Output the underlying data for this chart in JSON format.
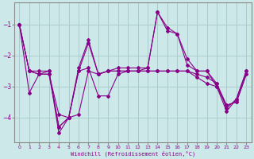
{
  "xlabel": "Windchill (Refroidissement éolien,°C)",
  "bg_color": "#cce8e8",
  "grid_color": "#aacccc",
  "line_color": "#880088",
  "x": [
    0,
    1,
    2,
    3,
    4,
    5,
    6,
    7,
    8,
    9,
    10,
    11,
    12,
    13,
    14,
    15,
    16,
    17,
    18,
    19,
    20,
    21,
    22,
    23
  ],
  "series": [
    [
      -1.0,
      -2.5,
      -2.6,
      -2.6,
      -4.3,
      -4.0,
      -3.9,
      -2.5,
      -2.6,
      -2.5,
      -2.5,
      -2.5,
      -2.5,
      -2.5,
      -2.5,
      -2.5,
      -2.5,
      -2.5,
      -2.6,
      -2.7,
      -2.9,
      -3.6,
      -3.5,
      -2.6
    ],
    [
      -1.0,
      -2.5,
      -2.5,
      -2.5,
      -4.5,
      -4.0,
      -2.5,
      -1.6,
      -2.6,
      -2.5,
      -2.4,
      -2.4,
      -2.4,
      -2.4,
      -0.6,
      -1.2,
      -1.3,
      -2.1,
      -2.5,
      -2.5,
      -2.9,
      -3.7,
      -3.4,
      -2.5
    ],
    [
      -1.0,
      -2.5,
      -2.6,
      -2.6,
      -3.9,
      -4.0,
      -2.4,
      -1.5,
      -2.6,
      -2.5,
      -2.5,
      -2.5,
      -2.5,
      -2.4,
      -0.6,
      -1.1,
      -1.3,
      -2.3,
      -2.5,
      -2.5,
      -3.0,
      -3.8,
      -3.4,
      -2.5
    ],
    [
      -1.0,
      -3.2,
      -2.6,
      -2.5,
      -4.3,
      -4.0,
      -2.5,
      -2.4,
      -3.3,
      -3.3,
      -2.6,
      -2.5,
      -2.5,
      -2.5,
      -2.5,
      -2.5,
      -2.5,
      -2.5,
      -2.7,
      -2.9,
      -3.0,
      -3.6,
      -3.5,
      -2.6
    ]
  ],
  "ylim": [
    -4.8,
    -0.3
  ],
  "xlim": [
    -0.5,
    23.5
  ],
  "yticks": [
    -4,
    -3,
    -2,
    -1
  ],
  "xticks": [
    0,
    1,
    2,
    3,
    4,
    5,
    6,
    7,
    8,
    9,
    10,
    11,
    12,
    13,
    14,
    15,
    16,
    17,
    18,
    19,
    20,
    21,
    22,
    23
  ],
  "marker": "D",
  "markersize": 2.0,
  "linewidth": 0.8
}
